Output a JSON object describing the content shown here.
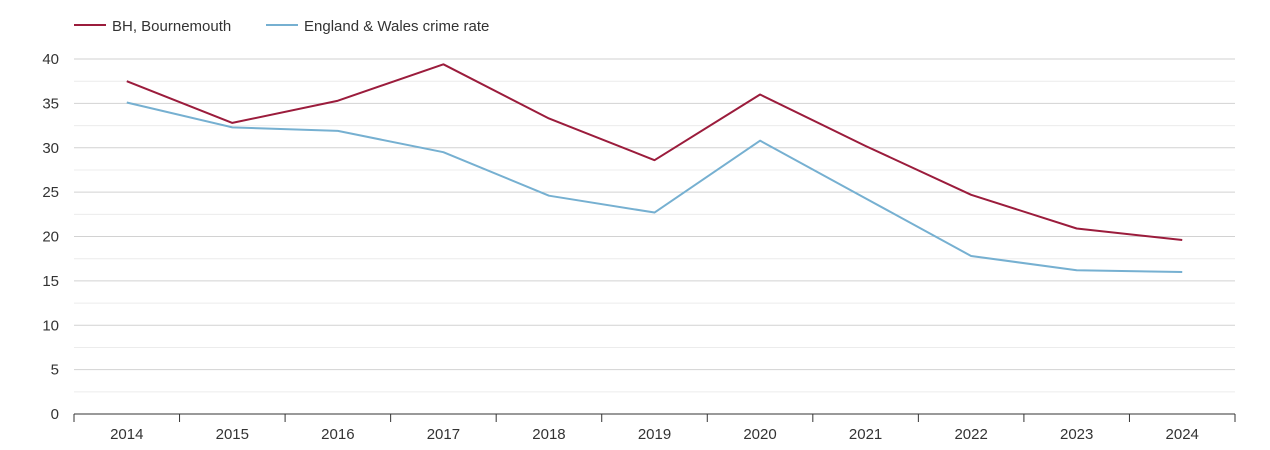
{
  "chart_data": {
    "type": "line",
    "x": [
      "2014",
      "2015",
      "2016",
      "2017",
      "2018",
      "2019",
      "2020",
      "2021",
      "2022",
      "2023",
      "2024"
    ],
    "series": [
      {
        "name": "BH, Bournemouth",
        "color": "#9b1c3c",
        "values": [
          37.5,
          32.8,
          35.3,
          39.4,
          33.3,
          28.6,
          36.0,
          30.2,
          24.7,
          20.9,
          19.6
        ]
      },
      {
        "name": "England & Wales crime rate",
        "color": "#76b0d1",
        "values": [
          35.1,
          32.3,
          31.9,
          29.5,
          24.6,
          22.7,
          30.8,
          24.3,
          17.8,
          16.2,
          16.0
        ]
      }
    ],
    "yticks": [
      "0",
      "5",
      "10",
      "15",
      "20",
      "25",
      "30",
      "35",
      "40"
    ],
    "ylim": [
      0,
      40
    ],
    "grid": true,
    "legend": "top-left"
  }
}
